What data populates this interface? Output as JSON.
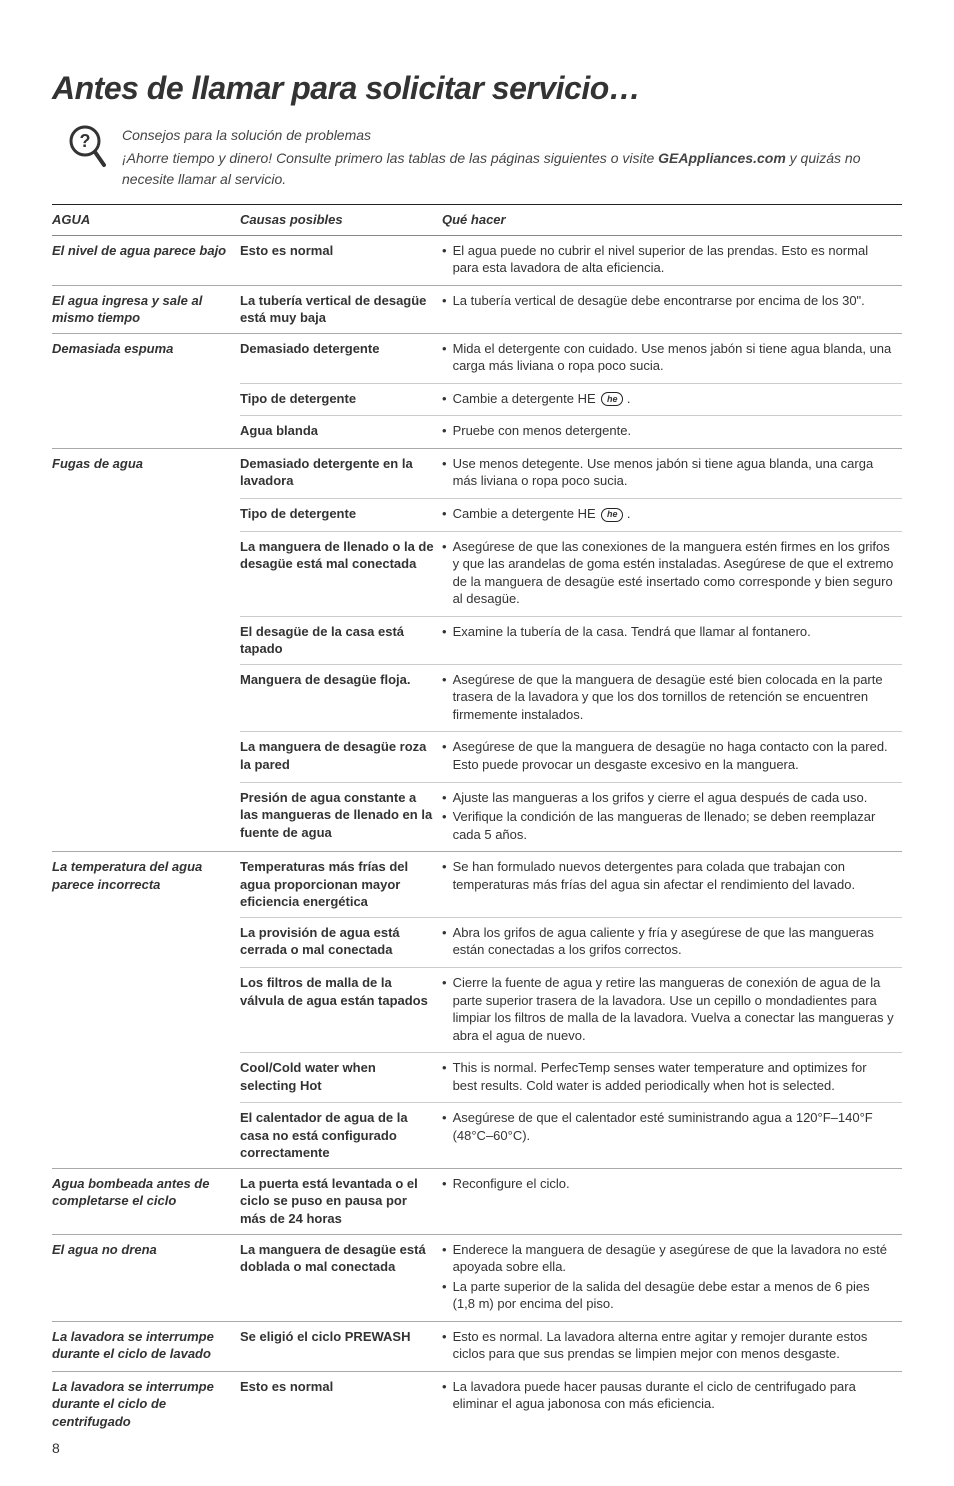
{
  "title": "Antes de llamar para solicitar servicio…",
  "intro": {
    "line1": "Consejos para la solución de problemas",
    "line2a": "¡Ahorre tiempo y dinero! Consulte primero las tablas de las páginas siguientes o visite ",
    "line2b": "GEAppliances.com",
    "line2c": " y quizás no necesite llamar al servicio."
  },
  "headers": {
    "col1": "AGUA",
    "col2": "Causas posibles",
    "col3": "Qué hacer"
  },
  "heLabel": "he",
  "rows": [
    {
      "problem": "El nivel de agua parece bajo",
      "causes": [
        {
          "cause": "Esto es normal",
          "actions": [
            "El agua puede no cubrir el nivel superior de las prendas. Esto es normal para esta lavadora de alta eficiencia."
          ]
        }
      ]
    },
    {
      "problem": "El agua ingresa y sale al mismo tiempo",
      "causes": [
        {
          "cause": "La tubería vertical de desagüe está muy baja",
          "actions": [
            "La tubería vertical de desagüe debe encontrarse por encima de los 30\"."
          ]
        }
      ]
    },
    {
      "problem": "Demasiada espuma",
      "causes": [
        {
          "cause": "Demasiado detergente",
          "actions": [
            "Mida el detergente con cuidado. Use menos jabón si tiene agua blanda, una carga más liviana o ropa poco sucia."
          ]
        },
        {
          "cause": "Tipo de detergente",
          "actions": [
            "Cambie a detergente HE {he} ."
          ]
        },
        {
          "cause": "Agua blanda",
          "actions": [
            "Pruebe con menos detergente."
          ]
        }
      ]
    },
    {
      "problem": "Fugas de agua",
      "causes": [
        {
          "cause": "Demasiado detergente en la lavadora",
          "actions": [
            "Use menos detegente. Use menos jabón si tiene agua blanda, una carga más liviana o ropa poco sucia."
          ]
        },
        {
          "cause": "Tipo de detergente",
          "actions": [
            "Cambie a detergente HE {he} ."
          ]
        },
        {
          "cause": "La manguera de llenado o la de desagüe está mal conectada",
          "actions": [
            "Asegúrese de que las conexiones de la manguera estén firmes en los grifos y que las arandelas de goma estén instaladas. Asegúrese de que el extremo de la manguera de desagüe esté insertado como corresponde y bien seguro al desagüe."
          ]
        },
        {
          "cause": "El desagüe de la casa está tapado",
          "actions": [
            "Examine la tubería de la casa. Tendrá que llamar al fontanero."
          ]
        },
        {
          "cause": "Manguera de desagüe floja.",
          "actions": [
            "Asegúrese de que la manguera de desagüe esté bien colocada en la parte trasera de la lavadora y que los dos tornillos de retención se encuentren firmemente instalados."
          ]
        },
        {
          "cause": "La manguera de desagüe roza la pared",
          "actions": [
            "Asegúrese de que la manguera de desagüe no haga contacto con la pared. Esto puede provocar un desgaste excesivo en la manguera."
          ]
        },
        {
          "cause": "Presión de agua constante a las mangueras de llenado en la fuente de agua",
          "actions": [
            "Ajuste las mangueras a los grifos y cierre el agua después de cada uso.",
            "Verifique la condición de las mangueras de llenado; se deben reemplazar cada 5 años."
          ]
        }
      ]
    },
    {
      "problem": "La temperatura del agua parece incorrecta",
      "causes": [
        {
          "cause": "Temperaturas más frías del agua proporcionan mayor eficiencia energética",
          "actions": [
            "Se han formulado nuevos detergentes para colada que trabajan con temperaturas más frías del agua sin afectar el rendimiento del lavado."
          ]
        },
        {
          "cause": "La provisión de agua está cerrada o mal conectada",
          "actions": [
            "Abra los grifos de agua caliente y fría y asegúrese de que las mangueras están conectadas a los grifos correctos."
          ]
        },
        {
          "cause": "Los filtros de malla de la válvula de agua están tapados",
          "actions": [
            "Cierre la fuente de agua y retire las mangueras de conexión de agua de la parte superior trasera de la lavadora. Use un cepillo o mondadientes para limpiar los filtros de malla de la lavadora. Vuelva a conectar las mangueras y abra el agua de nuevo."
          ]
        },
        {
          "cause": "Cool/Cold water when selecting Hot",
          "actions": [
            "This is normal.  PerfecTemp senses water temperature and optimizes for best results.  Cold water is added periodically when hot is selected."
          ]
        },
        {
          "cause": "El calentador de agua de la casa no está configurado correctamente",
          "actions": [
            "Asegúrese de que el calentador esté suministrando agua a 120°F–140°F (48°C–60°C)."
          ]
        }
      ]
    },
    {
      "problem": "Agua bombeada antes de completarse el ciclo",
      "causes": [
        {
          "cause": "La puerta está levantada o el ciclo se puso en pausa por más de 24 horas",
          "actions": [
            "Reconfigure el ciclo."
          ]
        }
      ]
    },
    {
      "problem": "El agua no drena",
      "causes": [
        {
          "cause": "La manguera de desagüe está doblada o mal conectada",
          "actions": [
            "Enderece la manguera de desagüe y asegúrese de que la lavadora no esté apoyada sobre ella.",
            "La parte superior de la salida del desagüe debe estar a menos de 6 pies (1,8 m) por encima del piso."
          ]
        }
      ]
    },
    {
      "problem": "La lavadora se interrumpe durante el ciclo de lavado",
      "causes": [
        {
          "cause": "Se eligió el ciclo PREWASH",
          "actions": [
            "Esto es normal. La lavadora alterna entre agitar y remojer durante estos ciclos para que sus prendas se limpien mejor con menos desgaste."
          ]
        }
      ]
    },
    {
      "problem": "La lavadora se interrumpe durante el ciclo de centrifugado",
      "causes": [
        {
          "cause": "Esto es normal",
          "actions": [
            "La lavadora puede hacer pausas durante el ciclo de centrifugado para eliminar el agua jabonosa con más eficiencia."
          ]
        }
      ]
    }
  ],
  "pageNumber": "8"
}
